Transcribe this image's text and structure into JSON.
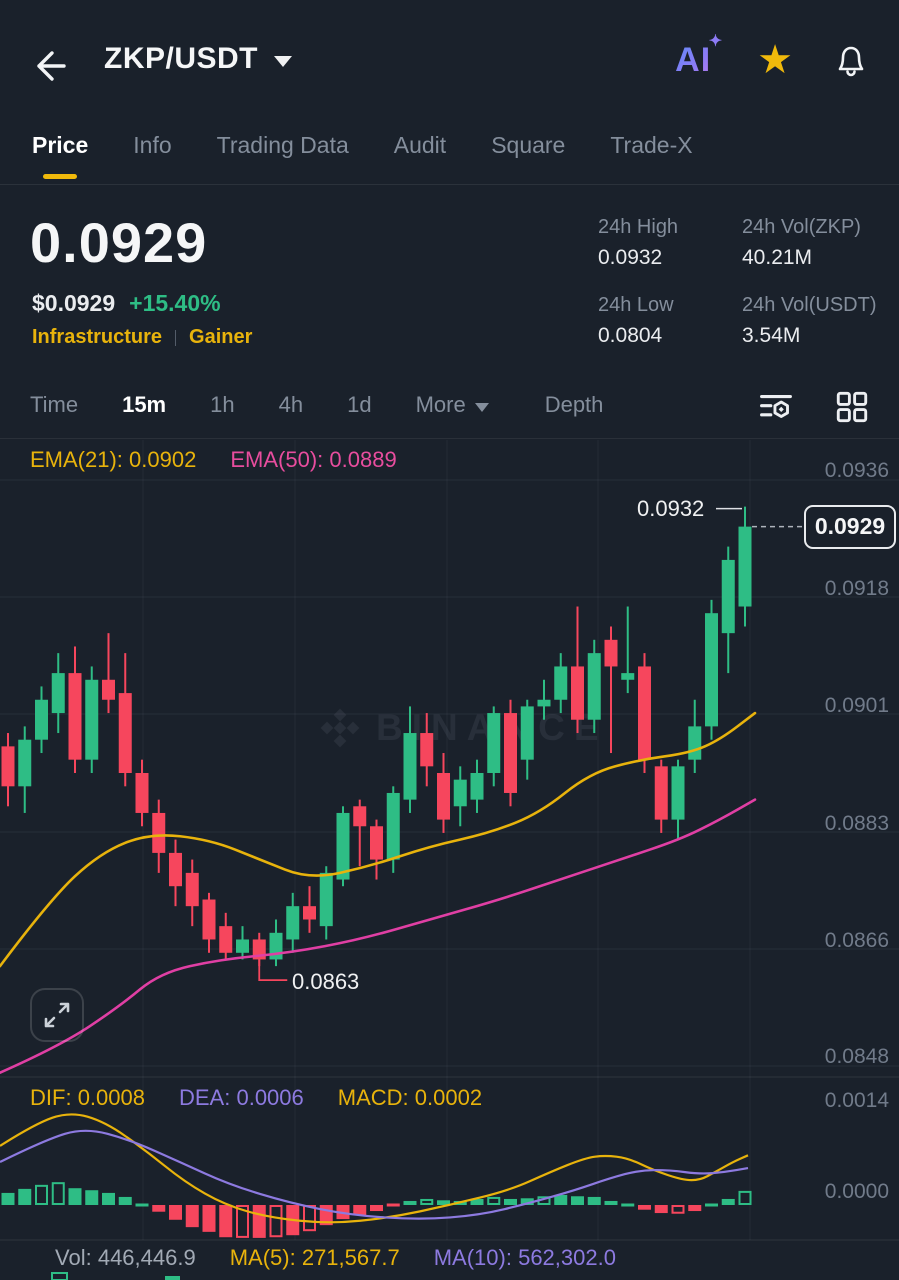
{
  "header": {
    "pair": "ZKP/USDT"
  },
  "tabs": {
    "items": [
      "Price",
      "Info",
      "Trading Data",
      "Audit",
      "Square",
      "Trade-X"
    ],
    "active": "Price"
  },
  "price_summary": {
    "last_price": "0.0929",
    "fiat_price": "$0.0929",
    "change_pct": "+15.40%",
    "tags": [
      "Infrastructure",
      "Gainer"
    ],
    "stats": [
      {
        "label": "24h High",
        "value": "0.0932"
      },
      {
        "label": "24h Vol(ZKP)",
        "value": "40.21M"
      },
      {
        "label": "24h Low",
        "value": "0.0804"
      },
      {
        "label": "24h Vol(USDT)",
        "value": "3.54M"
      }
    ]
  },
  "toolbar": {
    "intervals": [
      "Time",
      "15m",
      "1h",
      "4h",
      "1d"
    ],
    "active": "15m",
    "more_label": "More",
    "depth_label": "Depth"
  },
  "watermark": "BINANCE",
  "colors": {
    "up": "#2EBD85",
    "down": "#F6465D",
    "accent": "#F0B90B",
    "ema21": "#E8B30C",
    "ema50": "#E03FA4",
    "dif": "#E8B30C",
    "dea": "#8D7AE0",
    "text": "#EAECEF",
    "muted": "#848E9C",
    "axis": "#717B8A",
    "bg": "#1A212B"
  },
  "chart_data": {
    "type": "candlestick",
    "interval": "15m",
    "y_ticks": [
      "0.0936",
      "0.0918",
      "0.0901",
      "0.0883",
      "0.0866",
      "0.0848"
    ],
    "y_range": [
      0.0848,
      0.0936
    ],
    "grid": true,
    "candles": [
      [
        0.0896,
        0.0898,
        0.0887,
        0.089
      ],
      [
        0.089,
        0.0899,
        0.0886,
        0.0897
      ],
      [
        0.0897,
        0.0905,
        0.0895,
        0.0903
      ],
      [
        0.0901,
        0.091,
        0.0898,
        0.0907
      ],
      [
        0.0907,
        0.0911,
        0.0892,
        0.0894
      ],
      [
        0.0894,
        0.0908,
        0.0892,
        0.0906
      ],
      [
        0.0906,
        0.0913,
        0.0901,
        0.0903
      ],
      [
        0.0904,
        0.091,
        0.089,
        0.0892
      ],
      [
        0.0892,
        0.0894,
        0.0884,
        0.0886
      ],
      [
        0.0886,
        0.0888,
        0.0877,
        0.088
      ],
      [
        0.088,
        0.0882,
        0.0872,
        0.0875
      ],
      [
        0.0877,
        0.0879,
        0.0869,
        0.0872
      ],
      [
        0.0873,
        0.0874,
        0.0865,
        0.0867
      ],
      [
        0.0869,
        0.0871,
        0.0864,
        0.0865
      ],
      [
        0.0865,
        0.0869,
        0.0864,
        0.0867
      ],
      [
        0.0867,
        0.0868,
        0.0863,
        0.0864
      ],
      [
        0.0864,
        0.087,
        0.0863,
        0.0868
      ],
      [
        0.0867,
        0.0874,
        0.0865,
        0.0872
      ],
      [
        0.0872,
        0.0875,
        0.0868,
        0.087
      ],
      [
        0.0869,
        0.0878,
        0.0867,
        0.0877
      ],
      [
        0.0876,
        0.0887,
        0.0875,
        0.0886
      ],
      [
        0.0887,
        0.0888,
        0.0878,
        0.0884
      ],
      [
        0.0884,
        0.0885,
        0.0876,
        0.0879
      ],
      [
        0.0879,
        0.089,
        0.0877,
        0.0889
      ],
      [
        0.0888,
        0.0902,
        0.0886,
        0.0898
      ],
      [
        0.0898,
        0.0901,
        0.089,
        0.0893
      ],
      [
        0.0892,
        0.0895,
        0.0883,
        0.0885
      ],
      [
        0.0887,
        0.0893,
        0.0884,
        0.0891
      ],
      [
        0.0888,
        0.0894,
        0.0886,
        0.0892
      ],
      [
        0.0892,
        0.0902,
        0.089,
        0.0901
      ],
      [
        0.0901,
        0.0903,
        0.0887,
        0.0889
      ],
      [
        0.0894,
        0.0903,
        0.0891,
        0.0902
      ],
      [
        0.0902,
        0.0906,
        0.09,
        0.0903
      ],
      [
        0.0903,
        0.091,
        0.0901,
        0.0908
      ],
      [
        0.0908,
        0.0917,
        0.0898,
        0.09
      ],
      [
        0.09,
        0.0912,
        0.0898,
        0.091
      ],
      [
        0.0912,
        0.0914,
        0.0895,
        0.0908
      ],
      [
        0.0906,
        0.0917,
        0.0904,
        0.0907
      ],
      [
        0.0908,
        0.091,
        0.0892,
        0.0894
      ],
      [
        0.0893,
        0.0894,
        0.0883,
        0.0885
      ],
      [
        0.0885,
        0.0894,
        0.0882,
        0.0893
      ],
      [
        0.0894,
        0.0903,
        0.0892,
        0.0899
      ],
      [
        0.0899,
        0.0918,
        0.0897,
        0.0916
      ],
      [
        0.0913,
        0.0926,
        0.0907,
        0.0924
      ],
      [
        0.0917,
        0.0932,
        0.0914,
        0.0929
      ]
    ],
    "overlays": {
      "ema21": {
        "label": "EMA(21):",
        "value": "0.0902",
        "points": [
          [
            0,
            0.0863
          ],
          [
            50,
            0.0873
          ],
          [
            100,
            0.088
          ],
          [
            150,
            0.0883
          ],
          [
            210,
            0.0882
          ],
          [
            260,
            0.0879
          ],
          [
            310,
            0.0876
          ],
          [
            370,
            0.0878
          ],
          [
            430,
            0.0881
          ],
          [
            490,
            0.0883
          ],
          [
            540,
            0.0886
          ],
          [
            590,
            0.0892
          ],
          [
            640,
            0.0894
          ],
          [
            690,
            0.0895
          ],
          [
            720,
            0.0897
          ],
          [
            755,
            0.0901
          ]
        ]
      },
      "ema50": {
        "label": "EMA(50):",
        "value": "0.0889",
        "points": [
          [
            0,
            0.0847
          ],
          [
            60,
            0.0851
          ],
          [
            120,
            0.0857
          ],
          [
            160,
            0.0862
          ],
          [
            220,
            0.0864
          ],
          [
            290,
            0.0865
          ],
          [
            360,
            0.0867
          ],
          [
            430,
            0.087
          ],
          [
            500,
            0.0873
          ],
          [
            560,
            0.0876
          ],
          [
            620,
            0.0879
          ],
          [
            680,
            0.0882
          ],
          [
            720,
            0.0885
          ],
          [
            755,
            0.0888
          ]
        ]
      }
    },
    "annotations": {
      "high": {
        "text": "0.0932",
        "candle": 44
      },
      "low": {
        "text": "0.0863",
        "candle": 15
      },
      "last": {
        "text": "0.0929",
        "price": 0.0929
      }
    },
    "macd": {
      "dif_label": "DIF:",
      "dif": "0.0008",
      "dea_label": "DEA:",
      "dea": "0.0006",
      "macd_label": "MACD:",
      "macd": "0.0002",
      "y_ticks": [
        "0.0014",
        "0.0000"
      ],
      "hist": [
        0.00018,
        0.00024,
        0.0003,
        0.00034,
        0.00025,
        0.00022,
        0.00018,
        0.00012,
        3e-05,
        -0.0001,
        -0.00022,
        -0.00033,
        -0.0004,
        -0.00048,
        -0.00049,
        -0.00049,
        -0.00048,
        -0.00045,
        -0.00039,
        -0.0003,
        -0.00021,
        -0.00015,
        -9e-05,
        -4e-05,
        6e-05,
        9e-05,
        7e-05,
        6e-05,
        9e-05,
        0.00012,
        9e-05,
        0.0001,
        0.00013,
        0.00015,
        0.00013,
        0.00012,
        6e-05,
        3e-05,
        -7e-05,
        -0.00012,
        -0.00013,
        -9e-05,
        4e-05,
        9e-05,
        0.00021
      ],
      "hollow": [
        2,
        3,
        14,
        16,
        18,
        25,
        29,
        32,
        40,
        44
      ],
      "dif_points": [
        [
          0,
          0.00088
        ],
        [
          35,
          0.00121
        ],
        [
          70,
          0.00139
        ],
        [
          105,
          0.00124
        ],
        [
          145,
          0.00082
        ],
        [
          185,
          0.00034
        ],
        [
          225,
          0.0
        ],
        [
          270,
          -0.00019
        ],
        [
          330,
          -0.00028
        ],
        [
          390,
          -0.00019
        ],
        [
          450,
          0.0
        ],
        [
          510,
          0.00022
        ],
        [
          550,
          0.00049
        ],
        [
          585,
          0.0007
        ],
        [
          605,
          0.00074
        ],
        [
          628,
          0.0007
        ],
        [
          653,
          0.00052
        ],
        [
          683,
          0.00037
        ],
        [
          700,
          0.00037
        ],
        [
          715,
          0.00049
        ],
        [
          733,
          0.00064
        ],
        [
          748,
          0.00074
        ]
      ],
      "dea_points": [
        [
          0,
          0.00064
        ],
        [
          45,
          0.00097
        ],
        [
          85,
          0.00115
        ],
        [
          130,
          0.00097
        ],
        [
          180,
          0.00064
        ],
        [
          230,
          0.0003
        ],
        [
          290,
          3e-05
        ],
        [
          350,
          -0.00015
        ],
        [
          420,
          -0.00022
        ],
        [
          480,
          -0.00015
        ],
        [
          530,
          3e-05
        ],
        [
          575,
          0.00022
        ],
        [
          610,
          0.0004
        ],
        [
          640,
          0.00052
        ],
        [
          670,
          0.00052
        ],
        [
          700,
          0.00046
        ],
        [
          725,
          0.00049
        ],
        [
          748,
          0.00055
        ]
      ]
    },
    "volume": {
      "vol_label": "Vol:",
      "vol": "446,446.9",
      "ma5_label": "MA(5):",
      "ma5": "271,567.7",
      "ma10_label": "MA(10):",
      "ma10": "562,302.0"
    }
  }
}
